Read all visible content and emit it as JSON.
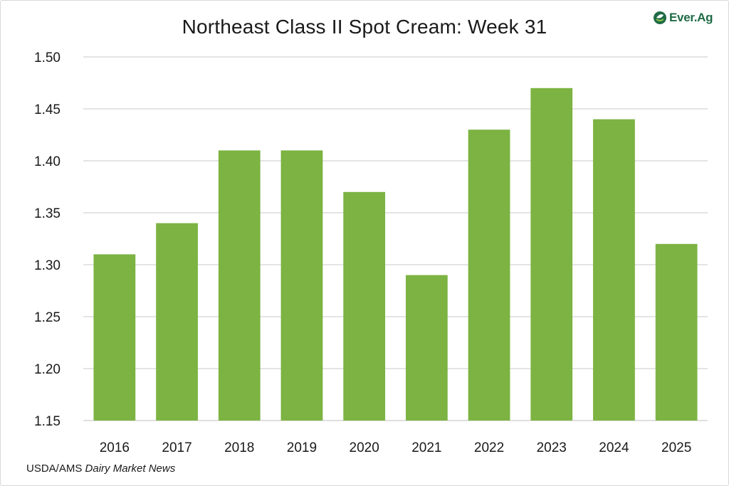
{
  "source": {
    "prefix": "USDA/AMS",
    "publication": "Dairy Market News"
  },
  "logo": {
    "text": "Ever.Ag",
    "icon": "ever-ag-leaf-icon",
    "color": "#1f6b45"
  },
  "colors": {
    "bar": "#7cb342",
    "grid": "#c8c8c8",
    "axis": "#bfbfbf"
  },
  "chart_data": {
    "type": "bar",
    "title": "Northeast Class II Spot Cream: Week 31",
    "xlabel": "",
    "ylabel": "",
    "categories": [
      "2016",
      "2017",
      "2018",
      "2019",
      "2020",
      "2021",
      "2022",
      "2023",
      "2024",
      "2025"
    ],
    "values": [
      1.31,
      1.34,
      1.41,
      1.41,
      1.37,
      1.29,
      1.43,
      1.47,
      1.44,
      1.32
    ],
    "ylim": [
      1.15,
      1.5
    ],
    "yticks": [
      "1.15",
      "1.20",
      "1.25",
      "1.30",
      "1.35",
      "1.40",
      "1.45",
      "1.50"
    ],
    "grid": true,
    "legend": "none"
  }
}
